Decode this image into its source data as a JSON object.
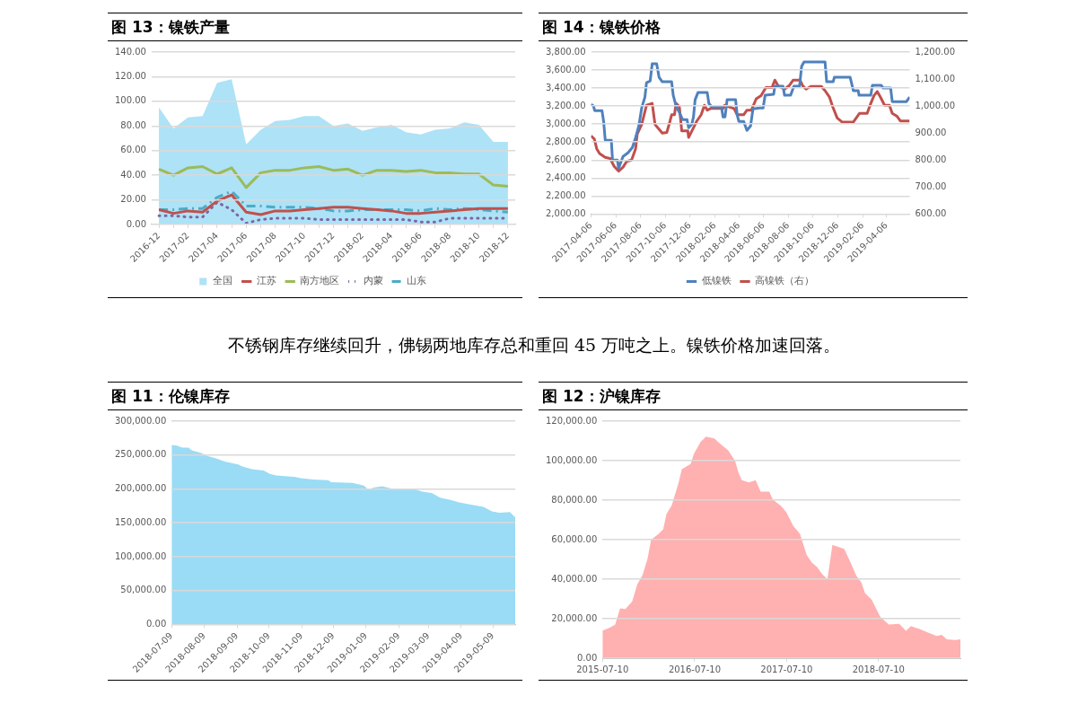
{
  "chart_data": [
    {
      "type": "line",
      "title": "图 13：镍铁产量",
      "categories": [
        "2016-12",
        null,
        "2017-02",
        null,
        "2017-04",
        null,
        "2017-06",
        null,
        "2017-08",
        null,
        "2017-10",
        null,
        "2017-12",
        null,
        "2018-02",
        null,
        "2018-04",
        null,
        "2018-06",
        null,
        "2018-08",
        null,
        "2018-10",
        null,
        "2018-12"
      ],
      "series": [
        {
          "name": "全国",
          "type": "area",
          "color": "#aee2f6",
          "values": [
            95,
            78,
            87,
            88,
            115,
            118,
            65,
            77,
            84,
            85,
            88,
            88,
            80,
            82,
            76,
            79,
            81,
            75,
            73,
            77,
            78,
            83,
            81,
            67,
            67
          ]
        },
        {
          "name": "江苏",
          "color": "#c0504d",
          "values": [
            12,
            9,
            11,
            10,
            19,
            24,
            10,
            8,
            11,
            11,
            12,
            13,
            14,
            14,
            13,
            12,
            11,
            9,
            9,
            10,
            11,
            12,
            13,
            13,
            13
          ]
        },
        {
          "name": "南方地区",
          "color": "#9bbb59",
          "values": [
            45,
            40,
            46,
            47,
            41,
            46,
            30,
            42,
            44,
            44,
            46,
            47,
            44,
            45,
            40,
            44,
            44,
            43,
            44,
            42,
            42,
            41,
            41,
            32,
            31
          ]
        },
        {
          "name": "内蒙",
          "color": "#8064a2",
          "line_style": "dotted",
          "values": [
            7,
            7,
            6,
            6,
            18,
            12,
            1,
            4,
            5,
            5,
            5,
            4,
            4,
            4,
            4,
            4,
            4,
            4,
            2,
            2,
            5,
            5,
            5,
            5,
            5
          ]
        },
        {
          "name": "山东",
          "color": "#4bacc6",
          "line_style": "dashed",
          "values": [
            12,
            12,
            13,
            13,
            22,
            27,
            15,
            15,
            14,
            14,
            14,
            13,
            11,
            11,
            12,
            12,
            12,
            12,
            11,
            13,
            12,
            13,
            12,
            11,
            10
          ]
        }
      ],
      "ylim": [
        0,
        140
      ],
      "yticks": [
        {
          "value": 0,
          "label": "0.00"
        },
        {
          "value": 20,
          "label": "20.00"
        },
        {
          "value": 40,
          "label": "40.00"
        },
        {
          "value": 60,
          "label": "60.00"
        },
        {
          "value": 80,
          "label": "80.00"
        },
        {
          "value": 100,
          "label": "100.00"
        },
        {
          "value": 120,
          "label": "120.00"
        },
        {
          "value": 140,
          "label": "140.00"
        }
      ],
      "grid": "y",
      "legend": "bottom",
      "marker": "none",
      "line_style": "solid"
    },
    {
      "type": "line",
      "title": "图 14：镍铁价格",
      "series": [
        {
          "name": "低镍铁",
          "color": "#4f81bd",
          "x": [
            "2017-04-06",
            "2017-04-12",
            "2017-04-15",
            "2017-05-03",
            "2017-05-07",
            "2017-05-11",
            "2017-05-26",
            "2017-05-29",
            "2017-06-10",
            "2017-06-13",
            "2017-06-24",
            "2017-07-06",
            "2017-07-17",
            "2017-07-25",
            "2017-08-02",
            "2017-08-09",
            "2017-08-17",
            "2017-08-21",
            "2017-08-30",
            "2017-09-04",
            "2017-09-15",
            "2017-09-21",
            "2017-09-29",
            "2017-10-22",
            "2017-10-26",
            "2017-11-02",
            "2017-11-10",
            "2017-11-18",
            "2017-11-29",
            "2017-12-03",
            "2017-12-11",
            "2017-12-15",
            "2017-12-19",
            "2017-12-26",
            "2018-01-18",
            "2018-01-22",
            "2018-01-30",
            "2018-02-22",
            "2018-02-26",
            "2018-03-03",
            "2018-03-08",
            "2018-03-29",
            "2018-04-02",
            "2018-04-06",
            "2018-04-18",
            "2018-04-26",
            "2018-05-05",
            "2018-05-11",
            "2018-05-27",
            "2018-06-05",
            "2018-06-10",
            "2018-07-01",
            "2018-07-04",
            "2018-07-24",
            "2018-07-28",
            "2018-08-12",
            "2018-08-20",
            "2018-09-03",
            "2018-09-08",
            "2018-09-14",
            "2018-11-05",
            "2018-11-09",
            "2018-11-25",
            "2018-11-28",
            "2019-01-06",
            "2019-01-14",
            "2019-01-26",
            "2019-01-28",
            "2019-02-26",
            "2019-03-02",
            "2019-03-24",
            "2019-03-28",
            "2019-04-16",
            "2019-04-20",
            "2019-05-25",
            "2019-06-02"
          ],
          "values": [
            3220,
            3200,
            3150,
            3150,
            3030,
            2820,
            2820,
            2600,
            2600,
            2510,
            2640,
            2680,
            2740,
            2850,
            2980,
            3180,
            3300,
            3460,
            3480,
            3670,
            3670,
            3520,
            3470,
            3470,
            3320,
            3200,
            3130,
            3050,
            3050,
            2960,
            3000,
            3080,
            3270,
            3350,
            3350,
            3230,
            3190,
            3190,
            3080,
            3080,
            3270,
            3270,
            3100,
            3030,
            3030,
            2930,
            2980,
            3170,
            3180,
            3180,
            3320,
            3330,
            3420,
            3420,
            3320,
            3320,
            3420,
            3420,
            3640,
            3690,
            3690,
            3470,
            3470,
            3520,
            3520,
            3370,
            3370,
            3320,
            3320,
            3430,
            3430,
            3400,
            3400,
            3250,
            3250,
            3300
          ]
        },
        {
          "name": "高镍铁（右）",
          "color": "#c0504d",
          "axis": "y2",
          "x": [
            "2017-04-06",
            "2017-04-14",
            "2017-04-20",
            "2017-04-27",
            "2017-05-11",
            "2017-05-23",
            "2017-06-02",
            "2017-06-13",
            "2017-06-24",
            "2017-07-03",
            "2017-07-15",
            "2017-07-25",
            "2017-07-29",
            "2017-08-09",
            "2017-08-21",
            "2017-09-04",
            "2017-09-11",
            "2017-09-21",
            "2017-09-29",
            "2017-10-10",
            "2017-10-18",
            "2017-10-22",
            "2017-10-29",
            "2017-11-02",
            "2017-11-10",
            "2017-11-16",
            "2017-12-01",
            "2017-12-03",
            "2017-12-11",
            "2017-12-23",
            "2018-01-03",
            "2018-01-11",
            "2018-01-18",
            "2018-01-26",
            "2018-02-26",
            "2018-03-02",
            "2018-03-25",
            "2018-04-02",
            "2018-04-18",
            "2018-04-26",
            "2018-05-07",
            "2018-05-19",
            "2018-05-31",
            "2018-06-12",
            "2018-06-27",
            "2018-07-04",
            "2018-07-12",
            "2018-07-28",
            "2018-08-08",
            "2018-08-18",
            "2018-09-04",
            "2018-09-11",
            "2018-09-19",
            "2018-10-01",
            "2018-10-27",
            "2018-11-05",
            "2018-11-16",
            "2018-11-24",
            "2018-12-05",
            "2018-12-17",
            "2019-01-14",
            "2019-01-21",
            "2019-01-29",
            "2019-02-17",
            "2019-02-26",
            "2019-03-06",
            "2019-03-14",
            "2019-03-22",
            "2019-04-01",
            "2019-04-13",
            "2019-04-20",
            "2019-05-02",
            "2019-05-10",
            "2019-06-02"
          ],
          "values": [
            890,
            878,
            842,
            824,
            810,
            806,
            777,
            759,
            774,
            795,
            800,
            842,
            896,
            932,
            1003,
            1010,
            932,
            914,
            900,
            902,
            944,
            968,
            968,
            1010,
            998,
            908,
            908,
            884,
            908,
            944,
            968,
            1003,
            985,
            991,
            991,
            1003,
            991,
            968,
            968,
            985,
            985,
            1027,
            1039,
            1069,
            1069,
            1096,
            1075,
            1063,
            1075,
            1096,
            1096,
            1075,
            1063,
            1073,
            1073,
            1057,
            1033,
            997,
            956,
            941,
            941,
            956,
            973,
            973,
            1010,
            1039,
            1054,
            1033,
            1003,
            1003,
            973,
            962,
            945,
            945
          ]
        }
      ],
      "xlim": [
        "2017-04-06",
        "2019-06-02"
      ],
      "xticks": [
        "2017-04-06",
        "2017-06-06",
        "2017-08-06",
        "2017-10-06",
        "2017-12-06",
        "2018-02-06",
        "2018-04-06",
        "2018-06-06",
        "2018-08-06",
        "2018-10-06",
        "2018-12-06",
        "2019-02-06",
        "2019-04-06"
      ],
      "ylim": [
        2000,
        3800
      ],
      "yticks": [
        {
          "value": 2000,
          "label": "2,000.00"
        },
        {
          "value": 2200,
          "label": "2,200.00"
        },
        {
          "value": 2400,
          "label": "2,400.00"
        },
        {
          "value": 2600,
          "label": "2,600.00"
        },
        {
          "value": 2800,
          "label": "2,800.00"
        },
        {
          "value": 3000,
          "label": "3,000.00"
        },
        {
          "value": 3200,
          "label": "3,200.00"
        },
        {
          "value": 3400,
          "label": "3,400.00"
        },
        {
          "value": 3600,
          "label": "3,600.00"
        },
        {
          "value": 3800,
          "label": "3,800.00"
        }
      ],
      "y2lim": [
        600,
        1200
      ],
      "y2ticks": [
        {
          "value": 600,
          "label": "600.00"
        },
        {
          "value": 700,
          "label": "700.00"
        },
        {
          "value": 800,
          "label": "800.00"
        },
        {
          "value": 900,
          "label": "900.00"
        },
        {
          "value": 1000,
          "label": "1,000.00"
        },
        {
          "value": 1100,
          "label": "1,100.00"
        },
        {
          "value": 1200,
          "label": "1,200.00"
        }
      ],
      "grid": "y",
      "legend": "bottom",
      "marker": "none",
      "line_style": "solid"
    },
    {
      "type": "other",
      "annotations": [
        "不锈钢库存继续回升，佛锡两地库存总和重回 45 万吨之上。镍铁价格加速回落。"
      ]
    },
    {
      "type": "area",
      "title": "图 11：伦镍库存",
      "series": [
        {
          "color": "#9adcf5",
          "x": [
            "2018-07-09",
            "2018-07-14",
            "2018-07-19",
            "2018-07-25",
            "2018-07-28",
            "2018-08-06",
            "2018-08-11",
            "2018-08-20",
            "2018-08-29",
            "2018-09-10",
            "2018-09-14",
            "2018-09-23",
            "2018-10-04",
            "2018-10-10",
            "2018-10-16",
            "2018-11-02",
            "2018-11-08",
            "2018-11-20",
            "2018-12-04",
            "2018-12-07",
            "2018-12-27",
            "2019-01-07",
            "2019-01-11",
            "2019-01-16",
            "2019-01-24",
            "2019-02-02",
            "2019-02-22",
            "2019-03-03",
            "2019-03-12",
            "2019-03-20",
            "2019-03-29",
            "2019-04-07",
            "2019-04-16",
            "2019-04-30",
            "2019-05-08",
            "2019-05-15",
            "2019-05-25",
            "2019-05-30"
          ],
          "values": [
            265000,
            264000,
            261000,
            261000,
            257000,
            253000,
            249000,
            245000,
            240000,
            236000,
            233000,
            229000,
            227000,
            222000,
            220000,
            218000,
            216000,
            214000,
            213000,
            210000,
            209000,
            205000,
            199000,
            202000,
            204000,
            200500,
            200500,
            196000,
            194000,
            187000,
            184000,
            180000,
            177500,
            173500,
            167000,
            165000,
            166000,
            158000
          ]
        }
      ],
      "xlim": [
        "2018-07-09",
        "2019-05-30"
      ],
      "xticks": [
        "2018-07-09",
        "2018-08-09",
        "2018-09-09",
        "2018-10-09",
        "2018-11-09",
        "2018-12-09",
        "2019-01-09",
        "2019-02-09",
        "2019-03-09",
        "2019-04-09",
        "2019-05-09"
      ],
      "ylim": [
        0,
        300000
      ],
      "yticks": [
        {
          "value": 0,
          "label": "0.00"
        },
        {
          "value": 50000,
          "label": "50,000.00"
        },
        {
          "value": 100000,
          "label": "100,000.00"
        },
        {
          "value": 150000,
          "label": "150,000.00"
        },
        {
          "value": 200000,
          "label": "200,000.00"
        },
        {
          "value": 250000,
          "label": "250,000.00"
        },
        {
          "value": 300000,
          "label": "300,000.00"
        }
      ],
      "grid": "y"
    },
    {
      "type": "area",
      "title": "图 12：沪镍库存",
      "series": [
        {
          "color": "#ffb0b0",
          "x": [
            "2015-07-10",
            "2015-08-02",
            "2015-08-29",
            "2015-09-18",
            "2015-10-09",
            "2015-11-05",
            "2015-11-25",
            "2015-12-16",
            "2016-01-05",
            "2016-01-19",
            "2016-02-15",
            "2016-03-07",
            "2016-03-20",
            "2016-04-10",
            "2016-05-07",
            "2016-05-20",
            "2016-06-24",
            "2016-07-07",
            "2016-08-03",
            "2016-08-24",
            "2016-09-26",
            "2016-10-17",
            "2016-11-20",
            "2016-12-17",
            "2016-12-31",
            "2017-01-13",
            "2017-02-10",
            "2017-03-09",
            "2017-03-29",
            "2017-05-02",
            "2017-05-16",
            "2017-06-19",
            "2017-07-09",
            "2017-08-05",
            "2017-09-01",
            "2017-09-28",
            "2017-10-19",
            "2017-11-08",
            "2017-11-28",
            "2017-12-19",
            "2018-01-08",
            "2018-01-28",
            "2018-02-24",
            "2018-03-23",
            "2018-04-13",
            "2018-05-03",
            "2018-05-17",
            "2018-06-13",
            "2018-07-17",
            "2018-08-20",
            "2018-09-30",
            "2018-10-27",
            "2018-11-16",
            "2018-12-20",
            "2019-01-23",
            "2019-02-26",
            "2019-03-18",
            "2019-04-07",
            "2019-05-11",
            "2019-05-31"
          ],
          "values": [
            14000,
            15100,
            16900,
            25200,
            24900,
            28700,
            37400,
            42100,
            50400,
            60000,
            62600,
            65200,
            73000,
            77400,
            88700,
            95700,
            98300,
            103500,
            109600,
            112200,
            111300,
            108700,
            105200,
            100000,
            93900,
            90100,
            89000,
            90100,
            84300,
            84300,
            80300,
            76900,
            73900,
            67000,
            63000,
            52200,
            48300,
            46100,
            42600,
            40000,
            57400,
            56500,
            55300,
            47800,
            41700,
            38300,
            33000,
            29600,
            20900,
            17000,
            17400,
            13900,
            16200,
            14800,
            13000,
            11300,
            11800,
            9600,
            9200,
            9600
          ]
        }
      ],
      "xlim": [
        "2015-07-10",
        "2019-05-31"
      ],
      "xticks": [
        "2015-07-10",
        "2016-07-10",
        "2017-07-10",
        "2018-07-10"
      ],
      "ylim": [
        0,
        120000
      ],
      "yticks": [
        {
          "value": 0,
          "label": "0.00"
        },
        {
          "value": 20000,
          "label": "20,000.00"
        },
        {
          "value": 40000,
          "label": "40,000.00"
        },
        {
          "value": 60000,
          "label": "60,000.00"
        },
        {
          "value": 80000,
          "label": "80,000.00"
        },
        {
          "value": 100000,
          "label": "100,000.00"
        },
        {
          "value": 120000,
          "label": "120,000.00"
        }
      ],
      "grid": "y"
    }
  ]
}
